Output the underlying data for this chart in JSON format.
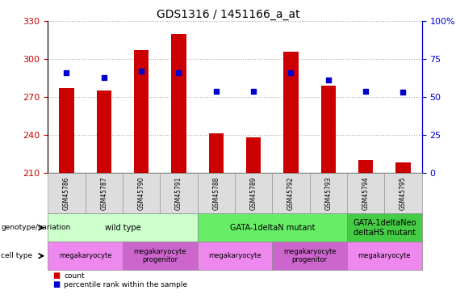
{
  "title": "GDS1316 / 1451166_a_at",
  "samples": [
    "GSM45786",
    "GSM45787",
    "GSM45790",
    "GSM45791",
    "GSM45788",
    "GSM45789",
    "GSM45792",
    "GSM45793",
    "GSM45794",
    "GSM45795"
  ],
  "count_values": [
    277,
    275,
    307,
    320,
    241,
    238,
    306,
    279,
    220,
    218
  ],
  "percentile_values": [
    66,
    63,
    67,
    66,
    54,
    54,
    66,
    61,
    54,
    53
  ],
  "ylim_left": [
    210,
    330
  ],
  "ylim_right": [
    0,
    100
  ],
  "yticks_left": [
    210,
    240,
    270,
    300,
    330
  ],
  "yticks_right": [
    0,
    25,
    50,
    75,
    100
  ],
  "bar_color": "#cc0000",
  "dot_color": "#0000cc",
  "genotype_groups": [
    {
      "label": "wild type",
      "start": 0,
      "end": 4,
      "color": "#ccffcc"
    },
    {
      "label": "GATA-1deltaN mutant",
      "start": 4,
      "end": 8,
      "color": "#66ee66"
    },
    {
      "label": "GATA-1deltaNeo\ndeltaHS mutant",
      "start": 8,
      "end": 10,
      "color": "#44cc44"
    }
  ],
  "cell_type_groups": [
    {
      "label": "megakaryocyte",
      "start": 0,
      "end": 2,
      "color": "#ee88ee"
    },
    {
      "label": "megakaryocyte\nprogenitor",
      "start": 2,
      "end": 4,
      "color": "#cc66cc"
    },
    {
      "label": "megakaryocyte",
      "start": 4,
      "end": 6,
      "color": "#ee88ee"
    },
    {
      "label": "megakaryocyte\nprogenitor",
      "start": 6,
      "end": 8,
      "color": "#cc66cc"
    },
    {
      "label": "megakaryocyte",
      "start": 8,
      "end": 10,
      "color": "#ee88ee"
    }
  ],
  "left_axis_color": "#cc0000",
  "right_axis_color": "#0000cc",
  "grid_color": "#aaaaaa"
}
